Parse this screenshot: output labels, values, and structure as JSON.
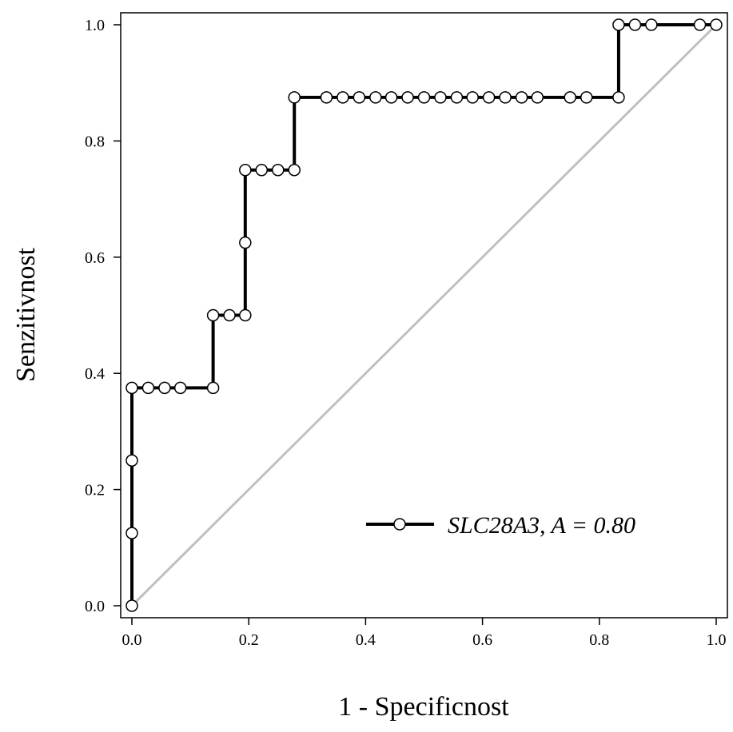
{
  "chart_data": {
    "type": "line",
    "xlabel": "1 - Specificnost",
    "ylabel": "Senzitivnost",
    "xlim": [
      0,
      1
    ],
    "ylim": [
      0,
      1
    ],
    "x_ticks": [
      "0.0",
      "0.2",
      "0.4",
      "0.6",
      "0.8",
      "1.0"
    ],
    "y_ticks": [
      "0.0",
      "0.2",
      "0.4",
      "0.6",
      "0.8",
      "1.0"
    ],
    "grid": false,
    "legend_position": "bottom-right",
    "series": [
      {
        "name": "SLC28A3, A = 0.80",
        "color": "#000000",
        "marker": "open-circle",
        "step": true,
        "points": [
          [
            0.0,
            0.0
          ],
          [
            0.0,
            0.125
          ],
          [
            0.0,
            0.25
          ],
          [
            0.0,
            0.375
          ],
          [
            0.028,
            0.375
          ],
          [
            0.056,
            0.375
          ],
          [
            0.083,
            0.375
          ],
          [
            0.139,
            0.375
          ],
          [
            0.139,
            0.5
          ],
          [
            0.167,
            0.5
          ],
          [
            0.194,
            0.5
          ],
          [
            0.194,
            0.625
          ],
          [
            0.194,
            0.75
          ],
          [
            0.222,
            0.75
          ],
          [
            0.25,
            0.75
          ],
          [
            0.278,
            0.75
          ],
          [
            0.278,
            0.875
          ],
          [
            0.333,
            0.875
          ],
          [
            0.361,
            0.875
          ],
          [
            0.389,
            0.875
          ],
          [
            0.417,
            0.875
          ],
          [
            0.444,
            0.875
          ],
          [
            0.472,
            0.875
          ],
          [
            0.5,
            0.875
          ],
          [
            0.528,
            0.875
          ],
          [
            0.556,
            0.875
          ],
          [
            0.583,
            0.875
          ],
          [
            0.611,
            0.875
          ],
          [
            0.639,
            0.875
          ],
          [
            0.667,
            0.875
          ],
          [
            0.694,
            0.875
          ],
          [
            0.75,
            0.875
          ],
          [
            0.778,
            0.875
          ],
          [
            0.833,
            0.875
          ],
          [
            0.833,
            1.0
          ],
          [
            0.861,
            1.0
          ],
          [
            0.889,
            1.0
          ],
          [
            0.972,
            1.0
          ],
          [
            1.0,
            1.0
          ]
        ]
      }
    ],
    "reference_line": {
      "from": [
        0,
        0
      ],
      "to": [
        1,
        1
      ],
      "color": "#c0c0c0"
    }
  }
}
